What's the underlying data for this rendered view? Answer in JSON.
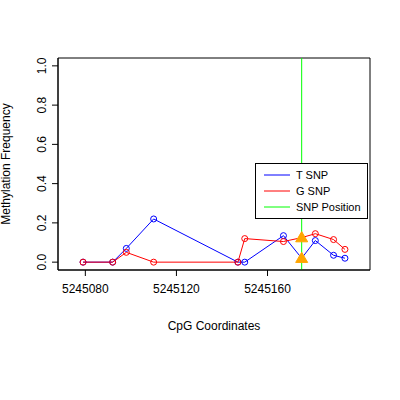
{
  "chart_data": {
    "type": "line",
    "x_label": "CpG Coordinates",
    "y_label": "Methylation Frequency",
    "x": [
      5245079,
      5245092,
      5245098,
      5245110,
      5245147,
      5245150,
      5245167,
      5245175,
      5245181,
      5245189,
      5245194
    ],
    "series": [
      {
        "name": "T SNP",
        "color": "#0000ff",
        "marker": "circle",
        "values": [
          0,
          0,
          0.07,
          0.22,
          0,
          0,
          0.135,
          0.02,
          0.11,
          0.035,
          0.02
        ]
      },
      {
        "name": "G SNP",
        "color": "#ff0000",
        "marker": "circle",
        "values": [
          0,
          0,
          0.05,
          0,
          0,
          0.12,
          0.105,
          0.125,
          0.145,
          0.115,
          0.065
        ]
      }
    ],
    "snp_position": {
      "name": "SNP Position",
      "x": 5245175,
      "color": "#00ff00"
    },
    "xlim": [
      5245068,
      5245205
    ],
    "xticks": [
      5245080,
      5245120,
      5245160
    ],
    "ylim": [
      -0.04,
      1.04
    ],
    "yticks": [
      {
        "value": 0,
        "label": "0.0"
      },
      {
        "value": 0.2,
        "label": "0.2"
      },
      {
        "value": 0.4,
        "label": "0.4"
      },
      {
        "value": 0.6,
        "label": "0.6"
      },
      {
        "value": 0.8,
        "label": "0.8"
      },
      {
        "value": 1,
        "label": "1.0"
      }
    ],
    "grid": false,
    "legend": "right"
  }
}
